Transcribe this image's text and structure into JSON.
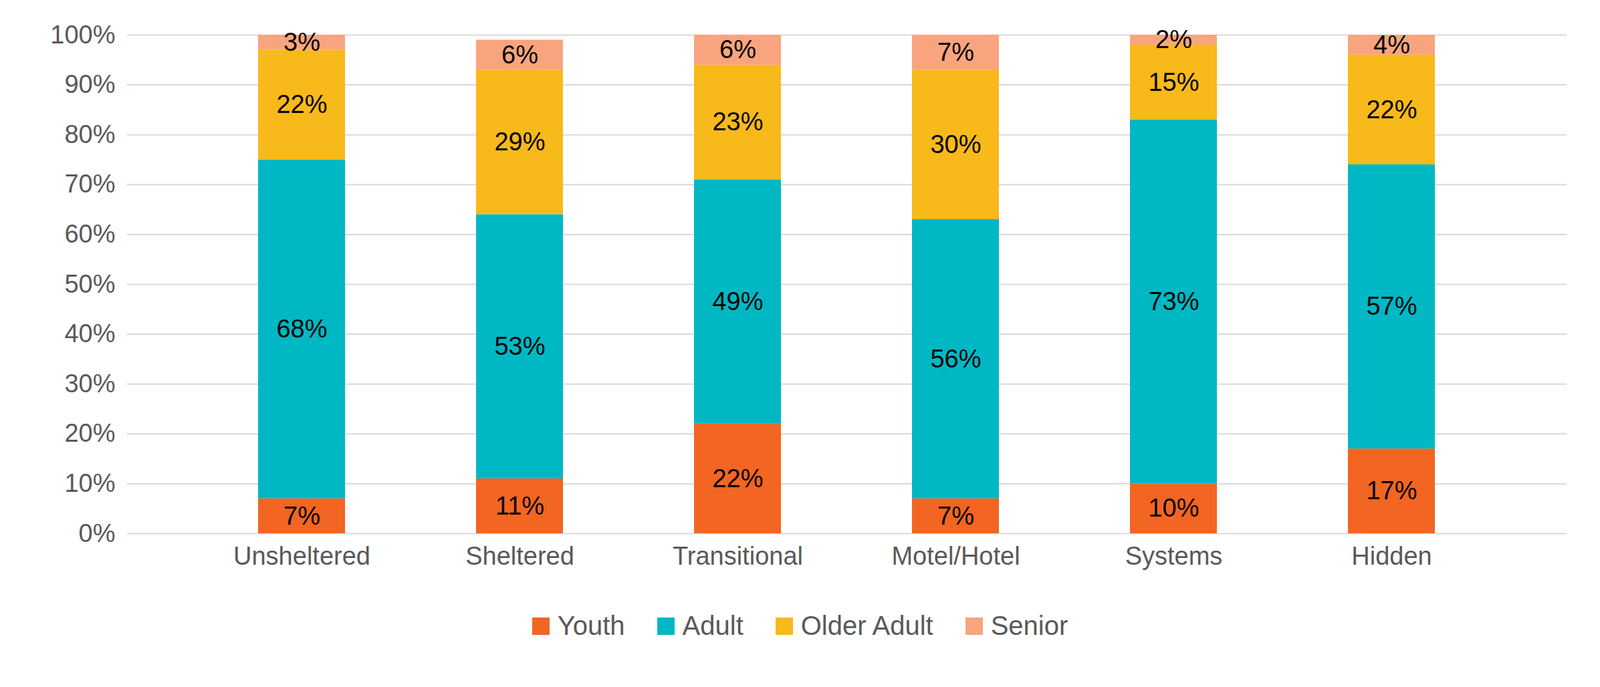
{
  "chart_data": {
    "type": "bar",
    "stacked": true,
    "grid": true,
    "legend": "bottom",
    "data_labels": true,
    "categories": [
      "Unsheltered",
      "Sheltered",
      "Transitional",
      "Motel/Hotel",
      "Systems",
      "Hidden"
    ],
    "ylim": [
      0,
      100
    ],
    "yticks": [
      {
        "value": 0,
        "label": "0%"
      },
      {
        "value": 10,
        "label": "10%"
      },
      {
        "value": 20,
        "label": "20%"
      },
      {
        "value": 30,
        "label": "30%"
      },
      {
        "value": 40,
        "label": "40%"
      },
      {
        "value": 50,
        "label": "50%"
      },
      {
        "value": 60,
        "label": "60%"
      },
      {
        "value": 70,
        "label": "70%"
      },
      {
        "value": 80,
        "label": "80%"
      },
      {
        "value": 90,
        "label": "90%"
      },
      {
        "value": 100,
        "label": "100%"
      }
    ],
    "series": [
      {
        "name": "Youth",
        "color": "#f26522",
        "values": [
          7,
          11,
          22,
          7,
          10,
          17
        ],
        "value_labels": [
          "7%",
          "11%",
          "22%",
          "7%",
          "10%",
          "17%"
        ]
      },
      {
        "name": "Adult",
        "color": "#00b8c4",
        "values": [
          68,
          53,
          49,
          56,
          73,
          57
        ],
        "value_labels": [
          "68%",
          "53%",
          "49%",
          "56%",
          "73%",
          "57%"
        ]
      },
      {
        "name": "Older Adult",
        "color": "#f8b91a",
        "values": [
          22,
          29,
          23,
          30,
          15,
          22
        ],
        "value_labels": [
          "22%",
          "29%",
          "23%",
          "30%",
          "15%",
          "22%"
        ]
      },
      {
        "name": "Senior",
        "color": "#f8a57f",
        "values": [
          3,
          6,
          6,
          7,
          2,
          4
        ],
        "value_labels": [
          "3%",
          "6%",
          "6%",
          "7%",
          "2%",
          "4%"
        ]
      }
    ]
  }
}
